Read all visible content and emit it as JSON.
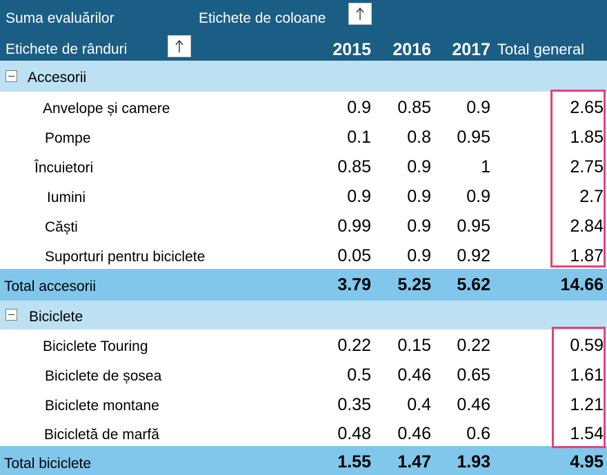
{
  "header": {
    "values_label": "Suma evaluărilor",
    "column_labels": "Etichete de coloane",
    "row_labels": "Etichete de rânduri",
    "years": [
      "2015",
      "2016",
      "2017"
    ],
    "grand_total": "Total general"
  },
  "groups": [
    {
      "name": "Accesorii",
      "rows": [
        {
          "label": "Anvelope și camere",
          "v2015": "0.9",
          "v2016": "0.85",
          "v2017": "0.9",
          "total": "2.65"
        },
        {
          "label": "Pompe",
          "v2015": "0.1",
          "v2016": "0.8",
          "v2017": "0.95",
          "total": "1.85"
        },
        {
          "label": "Încuietori",
          "v2015": "0.85",
          "v2016": "0.9",
          "v2017": "1",
          "total": "2.75"
        },
        {
          "label": "Iumini",
          "v2015": "0.9",
          "v2016": "0.9",
          "v2017": "0.9",
          "total": "2.7"
        },
        {
          "label": "Căști",
          "v2015": "0.99",
          "v2016": "0.9",
          "v2017": "0.95",
          "total": "2.84"
        },
        {
          "label": "Suporturi pentru biciclete",
          "v2015": "0.05",
          "v2016": "0.9",
          "v2017": "0.92",
          "total": "1.87"
        }
      ],
      "subtotal": {
        "label": "Total accesorii",
        "v2015": "3.79",
        "v2016": "5.25",
        "v2017": "5.62",
        "total": "14.66"
      }
    },
    {
      "name": "Biciclete",
      "rows": [
        {
          "label": "Biciclete Touring",
          "v2015": "0.22",
          "v2016": "0.15",
          "v2017": "0.22",
          "total": "0.59"
        },
        {
          "label": "Biciclete de șosea",
          "v2015": "0.5",
          "v2016": "0.46",
          "v2017": "0.65",
          "total": "1.61"
        },
        {
          "label": "Biciclete montane",
          "v2015": "0.35",
          "v2016": "0.4",
          "v2017": "0.46",
          "total": "1.21"
        },
        {
          "label": "Bicicletă de marfă",
          "v2015": "0.48",
          "v2016": "0.46",
          "v2017": "0.6",
          "total": "1.54"
        }
      ],
      "subtotal": {
        "label": "Total biciclete",
        "v2015": "1.55",
        "v2016": "1.47",
        "v2017": "1.93",
        "total": "4.95"
      }
    }
  ],
  "colors": {
    "header_bg": "#1b5e85",
    "category_bg": "#bde1f3",
    "total_bg": "#80c7eb",
    "highlight": "#e4417e"
  },
  "icons": {
    "sort": "up-arrow-icon",
    "collapse": "minus-box-icon"
  }
}
